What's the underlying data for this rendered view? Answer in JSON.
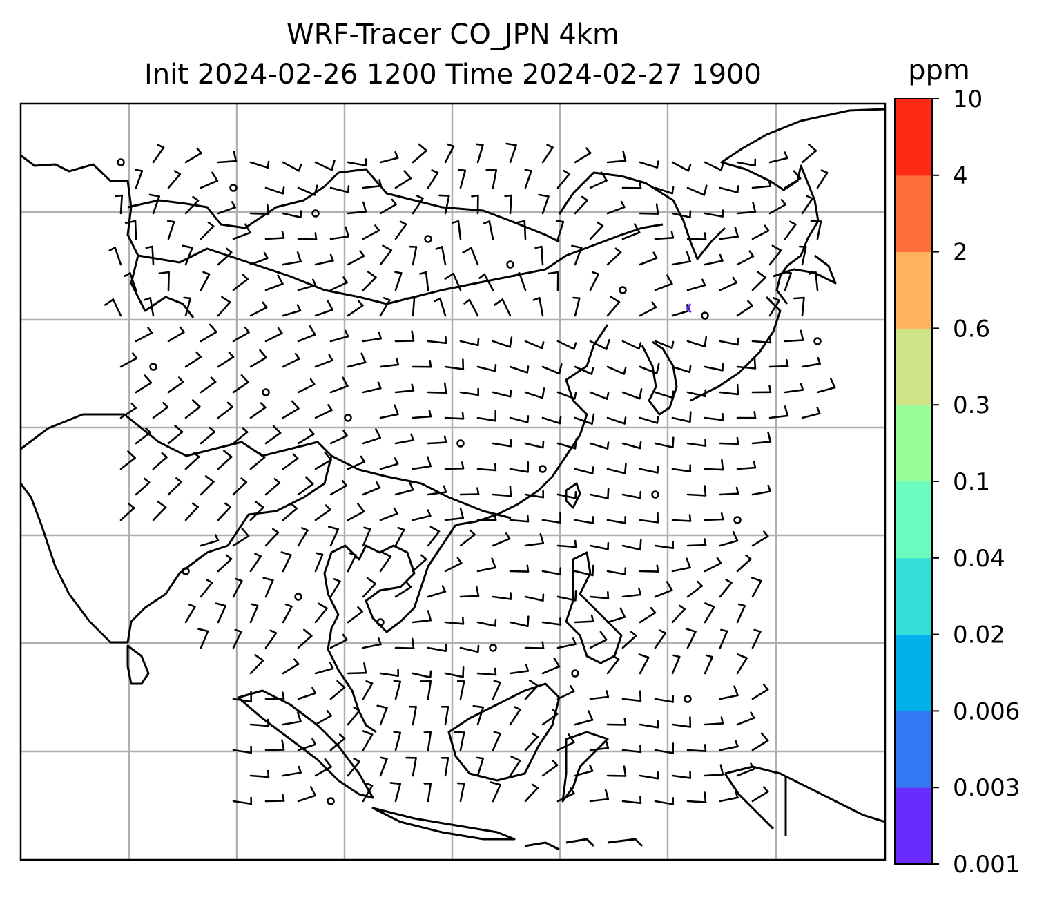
{
  "title": {
    "line1": "WRF-Tracer CO_JPN 4km",
    "line2": "Init 2024-02-26 1200 Time 2024-02-27 1900"
  },
  "colorbar": {
    "unit": "ppm",
    "levels": [
      "0.001",
      "0.003",
      "0.006",
      "0.02",
      "0.04",
      "0.1",
      "0.3",
      "0.6",
      "2",
      "4",
      "10"
    ],
    "colors": [
      "#6a2bff",
      "#3377f2",
      "#00b1ec",
      "#33dfd6",
      "#6afcbf",
      "#9afb99",
      "#d1e387",
      "#feb25e",
      "#ff6f3a",
      "#ff2a16"
    ]
  },
  "map": {
    "frame_color": "#000000",
    "grid_color": "#b0b0b0",
    "coastline_color": "#000000",
    "tracer_marker_color": "#6a2bff",
    "barbs": "wind barbs across East/Southeast Asia",
    "calm_markers": "small open circles for calm winds"
  }
}
